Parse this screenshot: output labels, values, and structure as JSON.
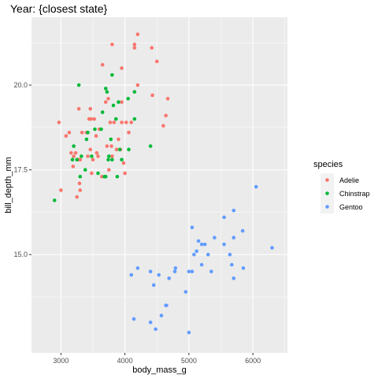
{
  "chart_data": {
    "type": "scatter",
    "title": "Year: {closest state}",
    "xlabel": "body_mass_g",
    "ylabel": "bill_depth_mm",
    "xlim": [
      2540,
      6540
    ],
    "ylim": [
      12.1,
      22.0
    ],
    "x_ticks": [
      3000,
      4000,
      5000,
      6000
    ],
    "x_tick_labels": [
      "3000",
      "4000",
      "5000",
      "6000"
    ],
    "y_ticks": [
      15.0,
      17.5,
      20.0
    ],
    "y_tick_labels": [
      "15.0",
      "17.5",
      "20.0"
    ],
    "grid": true,
    "legend_position": "right",
    "legend_title": "species",
    "colors": {
      "panel": "#EBEBEB",
      "grid": "#FFFFFF",
      "text": "#4D4D4D"
    },
    "series": [
      {
        "name": "Adelie",
        "color": "#F8766D",
        "points": [
          [
            2970,
            18.9
          ],
          [
            3000,
            16.9
          ],
          [
            3080,
            18.5
          ],
          [
            3130,
            18.6
          ],
          [
            3160,
            18.0
          ],
          [
            3190,
            17.6
          ],
          [
            3200,
            17.9
          ],
          [
            3230,
            18.0
          ],
          [
            3250,
            16.7
          ],
          [
            3270,
            17.8
          ],
          [
            3280,
            19.3
          ],
          [
            3290,
            17.1
          ],
          [
            3300,
            16.9
          ],
          [
            3300,
            17.8
          ],
          [
            3330,
            18.6
          ],
          [
            3400,
            18.6
          ],
          [
            3420,
            17.9
          ],
          [
            3440,
            19.0
          ],
          [
            3460,
            18.1
          ],
          [
            3460,
            19.3
          ],
          [
            3470,
            19.0
          ],
          [
            3480,
            17.4
          ],
          [
            3500,
            17.8
          ],
          [
            3520,
            19.0
          ],
          [
            3550,
            18.5
          ],
          [
            3560,
            18.0
          ],
          [
            3580,
            17.9
          ],
          [
            3600,
            18.7
          ],
          [
            3640,
            17.3
          ],
          [
            3650,
            20.6
          ],
          [
            3700,
            19.5
          ],
          [
            3720,
            18.2
          ],
          [
            3740,
            19.6
          ],
          [
            3750,
            17.5
          ],
          [
            3770,
            18.9
          ],
          [
            3790,
            18.2
          ],
          [
            3800,
            17.9
          ],
          [
            3800,
            21.2
          ],
          [
            3830,
            18.9
          ],
          [
            3870,
            18.1
          ],
          [
            3900,
            18.4
          ],
          [
            3930,
            18.1
          ],
          [
            3950,
            18.9
          ],
          [
            3950,
            19.5
          ],
          [
            3950,
            20.5
          ],
          [
            3980,
            17.7
          ],
          [
            4000,
            17.4
          ],
          [
            4020,
            18.9
          ],
          [
            4060,
            18.6
          ],
          [
            4100,
            18.9
          ],
          [
            4150,
            21.1
          ],
          [
            4150,
            21.2
          ],
          [
            4200,
            21.5
          ],
          [
            4200,
            20.0
          ],
          [
            4420,
            21.1
          ],
          [
            4430,
            19.7
          ],
          [
            4500,
            20.7
          ],
          [
            4600,
            18.8
          ],
          [
            4640,
            19.1
          ],
          [
            4670,
            19.6
          ]
        ]
      },
      {
        "name": "Chinstrap",
        "color": "#00BA38",
        "points": [
          [
            2900,
            16.6
          ],
          [
            3180,
            17.8
          ],
          [
            3200,
            18.2
          ],
          [
            3250,
            17.8
          ],
          [
            3280,
            20.0
          ],
          [
            3300,
            17.3
          ],
          [
            3320,
            17.9
          ],
          [
            3380,
            17.5
          ],
          [
            3400,
            18.4
          ],
          [
            3420,
            18.6
          ],
          [
            3480,
            17.9
          ],
          [
            3530,
            18.7
          ],
          [
            3580,
            17.4
          ],
          [
            3630,
            18.7
          ],
          [
            3650,
            19.2
          ],
          [
            3680,
            17.3
          ],
          [
            3700,
            19.9
          ],
          [
            3700,
            17.3
          ],
          [
            3720,
            19.8
          ],
          [
            3740,
            17.8
          ],
          [
            3750,
            17.9
          ],
          [
            3780,
            18.4
          ],
          [
            3800,
            20.3
          ],
          [
            3800,
            17.8
          ],
          [
            3820,
            19.4
          ],
          [
            3860,
            19.0
          ],
          [
            3880,
            17.3
          ],
          [
            3900,
            19.5
          ],
          [
            3920,
            18.1
          ],
          [
            3950,
            17.8
          ],
          [
            4050,
            19.6
          ],
          [
            4060,
            18.1
          ],
          [
            4150,
            19.0
          ],
          [
            4150,
            19.8
          ],
          [
            4400,
            18.2
          ]
        ]
      },
      {
        "name": "Gentoo",
        "color": "#619CFF",
        "points": [
          [
            4100,
            14.4
          ],
          [
            4140,
            13.1
          ],
          [
            4200,
            14.6
          ],
          [
            4400,
            13.0
          ],
          [
            4400,
            14.5
          ],
          [
            4450,
            14.1
          ],
          [
            4480,
            12.8
          ],
          [
            4530,
            14.4
          ],
          [
            4570,
            13.2
          ],
          [
            4640,
            13.5
          ],
          [
            4650,
            13.5
          ],
          [
            4690,
            14.3
          ],
          [
            4780,
            14.5
          ],
          [
            4790,
            14.6
          ],
          [
            4950,
            13.9
          ],
          [
            5000,
            14.5
          ],
          [
            5000,
            12.7
          ],
          [
            5050,
            15.8
          ],
          [
            5050,
            14.5
          ],
          [
            5080,
            15.0
          ],
          [
            5120,
            15.1
          ],
          [
            5150,
            15.4
          ],
          [
            5200,
            15.3
          ],
          [
            5200,
            14.7
          ],
          [
            5250,
            15.3
          ],
          [
            5300,
            15.0
          ],
          [
            5350,
            14.5
          ],
          [
            5400,
            15.5
          ],
          [
            5550,
            16.1
          ],
          [
            5550,
            15.3
          ],
          [
            5640,
            15.0
          ],
          [
            5670,
            14.7
          ],
          [
            5700,
            14.3
          ],
          [
            5700,
            16.3
          ],
          [
            5700,
            15.5
          ],
          [
            5840,
            15.7
          ],
          [
            5850,
            14.6
          ],
          [
            6050,
            17.0
          ],
          [
            6300,
            15.2
          ]
        ]
      }
    ]
  }
}
